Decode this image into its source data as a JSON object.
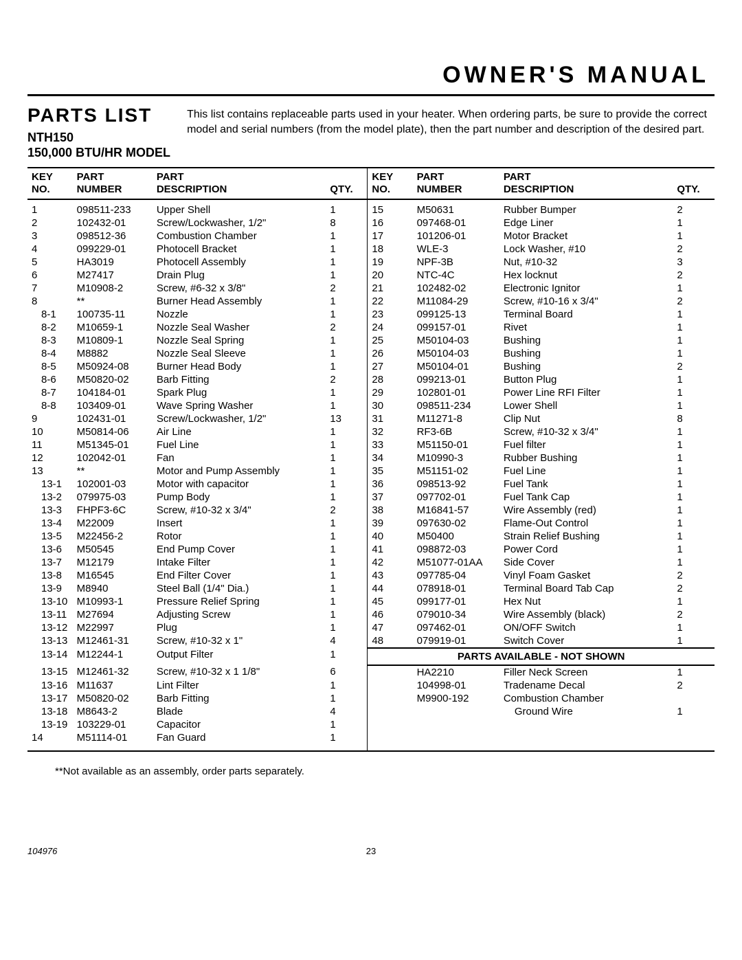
{
  "header": {
    "manual_title": "OWNER'S MANUAL",
    "section_title": "PARTS LIST",
    "model": "NTH150",
    "model_sub": "150,000 BTU/HR MODEL",
    "intro_text": "This list contains replaceable parts used in your heater. When ordering parts, be sure to provide the correct model and serial numbers (from the model plate), then the part number and description of the desired part."
  },
  "columns": {
    "key_no": "KEY NO.",
    "part_number": "PART NUMBER",
    "part_description": "PART DESCRIPTION",
    "qty": "QTY."
  },
  "left_rows": [
    {
      "key": "1",
      "pn": "098511-233",
      "desc": "Upper Shell",
      "qty": "1"
    },
    {
      "key": "2",
      "pn": "102432-01",
      "desc": "Screw/Lockwasher, 1/2\"",
      "qty": "8"
    },
    {
      "key": "3",
      "pn": "098512-36",
      "desc": "Combustion Chamber",
      "qty": "1"
    },
    {
      "key": "4",
      "pn": "099229-01",
      "desc": "Photocell Bracket",
      "qty": "1"
    },
    {
      "key": "5",
      "pn": "HA3019",
      "desc": "Photocell Assembly",
      "qty": "1"
    },
    {
      "key": "6",
      "pn": "M27417",
      "desc": "Drain Plug",
      "qty": "1"
    },
    {
      "key": "7",
      "pn": "M10908-2",
      "desc": "Screw, #6-32 x 3/8\"",
      "qty": "2"
    },
    {
      "key": "8",
      "pn": "**",
      "desc": "Burner Head Assembly",
      "qty": "1"
    },
    {
      "key": "8-1",
      "pn": "100735-11",
      "desc": "Nozzle",
      "qty": "1",
      "indent": true
    },
    {
      "key": "8-2",
      "pn": "M10659-1",
      "desc": "Nozzle Seal Washer",
      "qty": "2",
      "indent": true
    },
    {
      "key": "8-3",
      "pn": "M10809-1",
      "desc": "Nozzle Seal Spring",
      "qty": "1",
      "indent": true
    },
    {
      "key": "8-4",
      "pn": "M8882",
      "desc": "Nozzle Seal Sleeve",
      "qty": "1",
      "indent": true
    },
    {
      "key": "8-5",
      "pn": "M50924-08",
      "desc": "Burner Head Body",
      "qty": "1",
      "indent": true
    },
    {
      "key": "8-6",
      "pn": "M50820-02",
      "desc": "Barb Fitting",
      "qty": "2",
      "indent": true
    },
    {
      "key": "8-7",
      "pn": "104184-01",
      "desc": "Spark Plug",
      "qty": "1",
      "indent": true
    },
    {
      "key": "8-8",
      "pn": "103409-01",
      "desc": "Wave Spring Washer",
      "qty": "1",
      "indent": true
    },
    {
      "key": "9",
      "pn": "102431-01",
      "desc": "Screw/Lockwasher, 1/2\"",
      "qty": "13"
    },
    {
      "key": "10",
      "pn": "M50814-06",
      "desc": "Air Line",
      "qty": "1"
    },
    {
      "key": "11",
      "pn": "M51345-01",
      "desc": "Fuel Line",
      "qty": "1"
    },
    {
      "key": "12",
      "pn": "102042-01",
      "desc": "Fan",
      "qty": "1"
    },
    {
      "key": "13",
      "pn": "**",
      "desc": "Motor and Pump Assembly",
      "qty": "1"
    },
    {
      "key": "13-1",
      "pn": "102001-03",
      "desc": "Motor with capacitor",
      "qty": "1",
      "indent": true
    },
    {
      "key": "13-2",
      "pn": "079975-03",
      "desc": "Pump Body",
      "qty": "1",
      "indent": true
    },
    {
      "key": "13-3",
      "pn": "FHPF3-6C",
      "desc": "Screw, #10-32 x 3/4\"",
      "qty": "2",
      "indent": true
    },
    {
      "key": "13-4",
      "pn": "M22009",
      "desc": "Insert",
      "qty": "1",
      "indent": true
    },
    {
      "key": "13-5",
      "pn": "M22456-2",
      "desc": "Rotor",
      "qty": "1",
      "indent": true
    },
    {
      "key": "13-6",
      "pn": "M50545",
      "desc": "End Pump Cover",
      "qty": "1",
      "indent": true
    },
    {
      "key": "13-7",
      "pn": "M12179",
      "desc": "Intake Filter",
      "qty": "1",
      "indent": true
    },
    {
      "key": "13-8",
      "pn": "M16545",
      "desc": "End Filter Cover",
      "qty": "1",
      "indent": true
    },
    {
      "key": "13-9",
      "pn": "M8940",
      "desc": "Steel Ball (1/4\" Dia.)",
      "qty": "1",
      "indent": true
    },
    {
      "key": "13-10",
      "pn": "M10993-1",
      "desc": "Pressure Relief Spring",
      "qty": "1",
      "indent": true
    },
    {
      "key": "13-11",
      "pn": "M27694",
      "desc": "Adjusting Screw",
      "qty": "1",
      "indent": true
    },
    {
      "key": "13-12",
      "pn": "M22997",
      "desc": "Plug",
      "qty": "1",
      "indent": true
    },
    {
      "key": "13-13",
      "pn": "M12461-31",
      "desc": "Screw, #10-32 x 1\"",
      "qty": "4",
      "indent": true
    },
    {
      "key": "13-14",
      "pn": "M12244-1",
      "desc": "Output Filter",
      "qty": "1",
      "indent": true
    },
    {
      "key": "13-15",
      "pn": "M12461-32",
      "desc": "Screw, #10-32 x 1 1/8\"",
      "qty": "6",
      "indent": true
    },
    {
      "key": "13-16",
      "pn": "M11637",
      "desc": "Lint Filter",
      "qty": "1",
      "indent": true
    },
    {
      "key": "13-17",
      "pn": "M50820-02",
      "desc": "Barb Fitting",
      "qty": "1",
      "indent": true
    },
    {
      "key": "13-18",
      "pn": "M8643-2",
      "desc": "Blade",
      "qty": "4",
      "indent": true
    },
    {
      "key": "13-19",
      "pn": "103229-01",
      "desc": "Capacitor",
      "qty": "1",
      "indent": true
    },
    {
      "key": "14",
      "pn": "M51114-01",
      "desc": "Fan Guard",
      "qty": "1"
    }
  ],
  "right_rows": [
    {
      "key": "15",
      "pn": "M50631",
      "desc": "Rubber Bumper",
      "qty": "2"
    },
    {
      "key": "16",
      "pn": "097468-01",
      "desc": "Edge Liner",
      "qty": "1"
    },
    {
      "key": "17",
      "pn": "101206-01",
      "desc": "Motor Bracket",
      "qty": "1"
    },
    {
      "key": "18",
      "pn": "WLE-3",
      "desc": "Lock Washer, #10",
      "qty": "2"
    },
    {
      "key": "19",
      "pn": "NPF-3B",
      "desc": "Nut, #10-32",
      "qty": "3"
    },
    {
      "key": "20",
      "pn": "NTC-4C",
      "desc": "Hex locknut",
      "qty": "2"
    },
    {
      "key": "21",
      "pn": "102482-02",
      "desc": "Electronic Ignitor",
      "qty": "1"
    },
    {
      "key": "22",
      "pn": "M11084-29",
      "desc": "Screw, #10-16 x 3/4\"",
      "qty": "2"
    },
    {
      "key": "23",
      "pn": "099125-13",
      "desc": "Terminal Board",
      "qty": "1"
    },
    {
      "key": "24",
      "pn": "099157-01",
      "desc": "Rivet",
      "qty": "1"
    },
    {
      "key": "25",
      "pn": "M50104-03",
      "desc": "Bushing",
      "qty": "1"
    },
    {
      "key": "26",
      "pn": "M50104-03",
      "desc": "Bushing",
      "qty": "1"
    },
    {
      "key": "27",
      "pn": "M50104-01",
      "desc": "Bushing",
      "qty": "2"
    },
    {
      "key": "28",
      "pn": "099213-01",
      "desc": "Button Plug",
      "qty": "1"
    },
    {
      "key": "29",
      "pn": "102801-01",
      "desc": "Power Line RFI Filter",
      "qty": "1"
    },
    {
      "key": "30",
      "pn": "098511-234",
      "desc": "Lower Shell",
      "qty": "1"
    },
    {
      "key": "31",
      "pn": "M11271-8",
      "desc": "Clip Nut",
      "qty": "8"
    },
    {
      "key": "32",
      "pn": "RF3-6B",
      "desc": "Screw, #10-32 x 3/4\"",
      "qty": "1"
    },
    {
      "key": "33",
      "pn": "M51150-01",
      "desc": "Fuel filter",
      "qty": "1"
    },
    {
      "key": "34",
      "pn": "M10990-3",
      "desc": "Rubber Bushing",
      "qty": "1"
    },
    {
      "key": "35",
      "pn": "M51151-02",
      "desc": "Fuel Line",
      "qty": "1"
    },
    {
      "key": "36",
      "pn": "098513-92",
      "desc": "Fuel Tank",
      "qty": "1"
    },
    {
      "key": "37",
      "pn": "097702-01",
      "desc": "Fuel Tank Cap",
      "qty": "1"
    },
    {
      "key": "38",
      "pn": "M16841-57",
      "desc": "Wire Assembly (red)",
      "qty": "1"
    },
    {
      "key": "39",
      "pn": "097630-02",
      "desc": "Flame-Out Control",
      "qty": "1"
    },
    {
      "key": "40",
      "pn": "M50400",
      "desc": "Strain Relief Bushing",
      "qty": "1"
    },
    {
      "key": "41",
      "pn": "098872-03",
      "desc": "Power Cord",
      "qty": "1"
    },
    {
      "key": "42",
      "pn": "M51077-01AA",
      "desc": "Side Cover",
      "qty": "1"
    },
    {
      "key": "43",
      "pn": "097785-04",
      "desc": "Vinyl Foam Gasket",
      "qty": "2"
    },
    {
      "key": "44",
      "pn": "078918-01",
      "desc": "Terminal Board Tab Cap",
      "qty": "2"
    },
    {
      "key": "45",
      "pn": "099177-01",
      "desc": "Hex Nut",
      "qty": "1"
    },
    {
      "key": "46",
      "pn": "079010-34",
      "desc": "Wire Assembly (black)",
      "qty": "2"
    },
    {
      "key": "47",
      "pn": "097462-01",
      "desc": "ON/OFF Switch",
      "qty": "1"
    },
    {
      "key": "48",
      "pn": "079919-01",
      "desc": "Switch Cover",
      "qty": "1"
    }
  ],
  "not_shown_header": "PARTS AVAILABLE - NOT SHOWN",
  "not_shown_rows": [
    {
      "key": "",
      "pn": "HA2210",
      "desc": "Filler Neck Screen",
      "qty": "1"
    },
    {
      "key": "",
      "pn": "104998-01",
      "desc": "Tradename Decal",
      "qty": "2"
    },
    {
      "key": "",
      "pn": "M9900-192",
      "desc": "Combustion Chamber",
      "qty": ""
    },
    {
      "key": "",
      "pn": "",
      "desc": "  Ground Wire",
      "qty": "1"
    }
  ],
  "footnote": "**Not available as an assembly, order parts separately.",
  "footer": {
    "doc_num": "104976",
    "page": "23"
  }
}
